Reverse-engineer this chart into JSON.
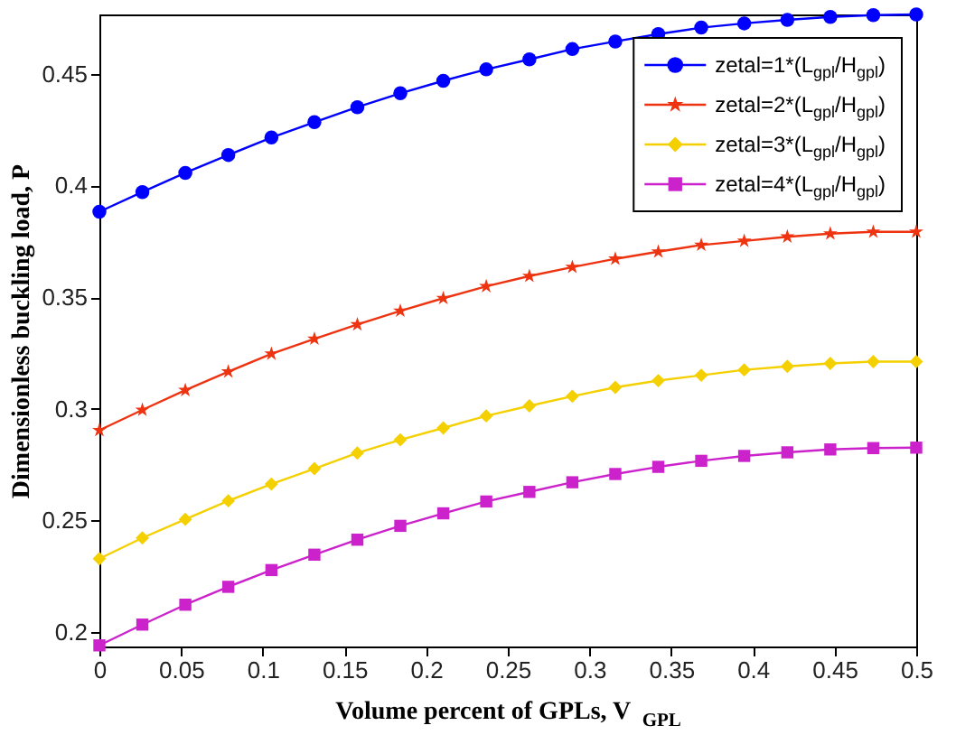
{
  "chart_data": {
    "type": "line",
    "xlabel": "Volume percent of GPLs, V$_{GPL}$",
    "ylabel": "Dimensionless buckling load, P",
    "x": [
      0,
      0.0263,
      0.0526,
      0.0789,
      0.1053,
      0.1316,
      0.1579,
      0.1842,
      0.2105,
      0.2368,
      0.2632,
      0.2895,
      0.3158,
      0.3421,
      0.3684,
      0.3947,
      0.4211,
      0.4474,
      0.4737,
      0.5
    ],
    "xlim": [
      0,
      0.5
    ],
    "xticks": [
      0,
      0.05,
      0.1,
      0.15,
      0.2,
      0.25,
      0.3,
      0.35,
      0.4,
      0.45,
      0.5
    ],
    "ylim": [
      0.1936,
      0.4765
    ],
    "yticks": [
      0.2,
      0.25,
      0.3,
      0.35,
      0.4,
      0.45
    ],
    "grid": false,
    "legend": "top right",
    "line_style": "solid",
    "series": [
      {
        "name": "zetal=1*(L$_{gpl}$/H$_{gpl}$)",
        "color": "#0000ff",
        "marker": "circle",
        "values": [
          0.3882,
          0.397,
          0.4056,
          0.4136,
          0.4214,
          0.4283,
          0.435,
          0.4412,
          0.4468,
          0.4519,
          0.4564,
          0.461,
          0.4644,
          0.4677,
          0.4706,
          0.4725,
          0.4741,
          0.4754,
          0.4762,
          0.4765
        ]
      },
      {
        "name": "zetal=2*(L$_{gpl}$/H$_{gpl}$)",
        "color": "#ee3311",
        "marker": "star",
        "values": [
          0.2904,
          0.2995,
          0.3083,
          0.3166,
          0.3246,
          0.3313,
          0.3377,
          0.3438,
          0.3495,
          0.3548,
          0.3594,
          0.3634,
          0.3671,
          0.3703,
          0.3733,
          0.3751,
          0.377,
          0.3784,
          0.3792,
          0.3792
        ]
      },
      {
        "name": "zetal=3*(L$_{gpl}$/H$_{gpl}$)",
        "color": "#f5d000",
        "marker": "diamond",
        "values": [
          0.2329,
          0.2422,
          0.2505,
          0.2588,
          0.2663,
          0.2732,
          0.2802,
          0.2861,
          0.2914,
          0.2968,
          0.3013,
          0.3056,
          0.3096,
          0.3126,
          0.315,
          0.3174,
          0.319,
          0.3203,
          0.3211,
          0.3211
        ]
      },
      {
        "name": "zetal=4*(L$_{gpl}$/H$_{gpl}$)",
        "color": "#cc22cc",
        "marker": "square",
        "values": [
          0.1941,
          0.2034,
          0.2123,
          0.2203,
          0.2278,
          0.2347,
          0.2414,
          0.2476,
          0.2532,
          0.2585,
          0.2628,
          0.2671,
          0.2708,
          0.274,
          0.2767,
          0.2789,
          0.2805,
          0.2818,
          0.2824,
          0.2826
        ]
      }
    ]
  }
}
